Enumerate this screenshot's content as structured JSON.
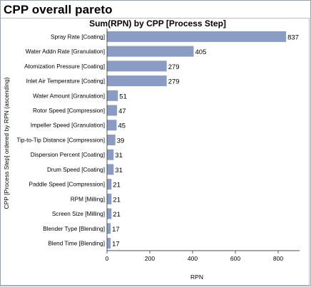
{
  "app": {
    "title": "CPP overall pareto"
  },
  "chart_data": {
    "type": "bar",
    "orientation": "horizontal",
    "title": "Sum(RPN) by CPP [Process Step]",
    "xlabel": "RPN",
    "ylabel": "CPP [Process Step] ordered by RPN (ascending)",
    "xlim": [
      0,
      860
    ],
    "xticks": [
      0,
      200,
      400,
      600,
      800
    ],
    "grid": false,
    "bar_color": "#8a9cc4",
    "categories": [
      "Spray Rate [Coating]",
      "Water Addn Rate [Granulation]",
      "Atomization Pressure [Coating]",
      "Inlet Air Temperature [Coating]",
      "Water Amount [Granulation]",
      "Rotor Speed [Compression]",
      "Impeller Speed [Granulation]",
      "Tip-to-Tip Distance [Compression]",
      "Dispersion Percent [Coating]",
      "Drum Speed [Coating]",
      "Paddle Speed [Compression]",
      "RPM [Milling]",
      "Screen Size [Milling]",
      "Blender Type [Blending]",
      "Blend Time [Blending]"
    ],
    "values": [
      837,
      405,
      279,
      279,
      51,
      47,
      45,
      39,
      31,
      31,
      21,
      21,
      21,
      17,
      17
    ]
  }
}
